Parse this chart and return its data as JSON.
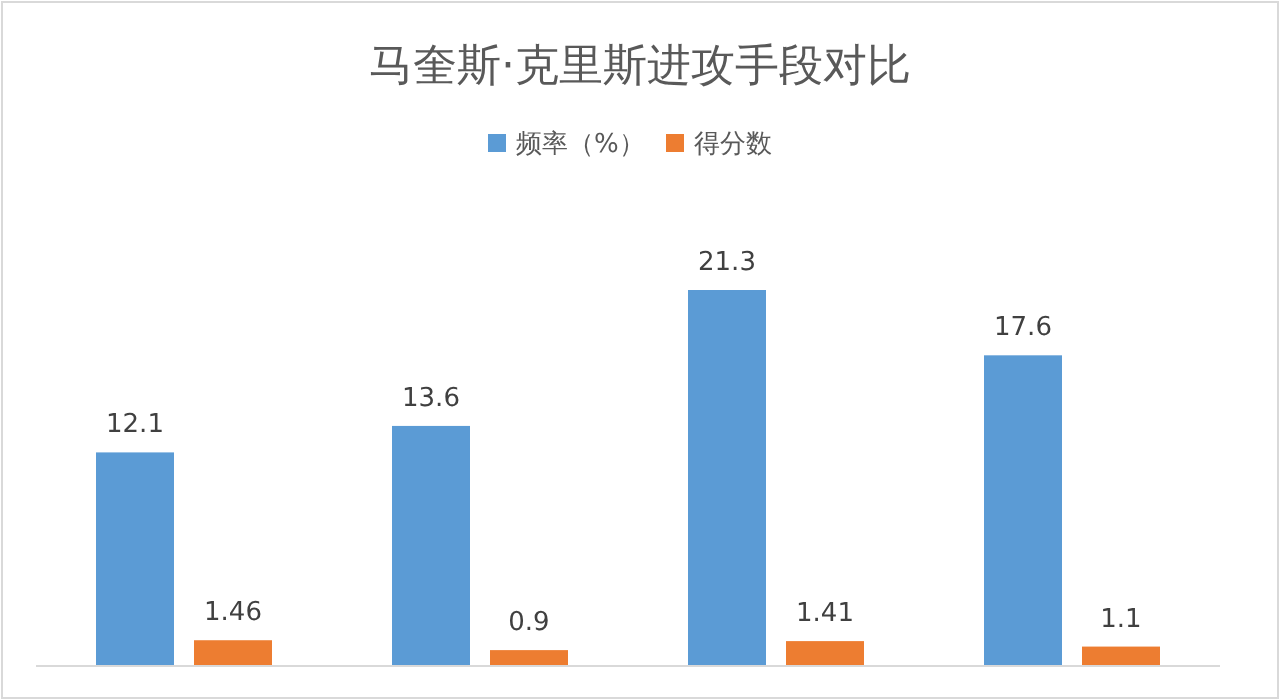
{
  "chart_data": {
    "type": "bar",
    "title": "马奎斯·克里斯进攻手段对比",
    "categories": [
      null,
      null,
      null,
      null
    ],
    "series": [
      {
        "name": "频率（%）",
        "color": "#5b9bd5",
        "values": [
          12.1,
          13.6,
          21.3,
          17.6
        ]
      },
      {
        "name": "得分数",
        "color": "#ed7d31",
        "values": [
          1.46,
          0.9,
          1.41,
          1.1
        ]
      }
    ],
    "data_labels": true,
    "legend": "top"
  }
}
